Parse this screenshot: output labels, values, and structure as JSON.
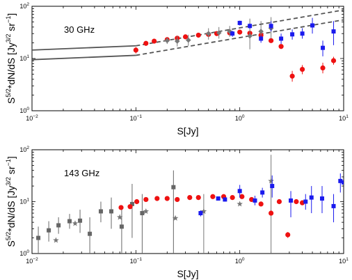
{
  "chart_data": [
    {
      "type": "scatter",
      "annotation": "30 GHz",
      "xlabel": "S[Jy]",
      "ylabel_main": "S",
      "ylabel_sup": "5/2",
      "ylabel_mid": "*dN/dS [Jy",
      "ylabel_sup2": "3/2",
      "ylabel_mid2": " sr",
      "ylabel_sup3": "−1",
      "ylabel_end": "]",
      "xscale": "log",
      "yscale": "log",
      "xlim": [
        0.01,
        10
      ],
      "ylim": [
        1,
        100
      ],
      "x_ticks": [
        {
          "v": 0.01,
          "label": "10",
          "exp": "−2"
        },
        {
          "v": 0.1,
          "label": "10",
          "exp": "−1"
        },
        {
          "v": 1,
          "label": "10",
          "exp": "0"
        },
        {
          "v": 10,
          "label": "10",
          "exp": "1"
        }
      ],
      "y_ticks": [
        {
          "v": 1,
          "label": "10",
          "exp": "0"
        },
        {
          "v": 10,
          "label": "10",
          "exp": "1"
        },
        {
          "v": 100,
          "label": "10",
          "exp": "2"
        }
      ],
      "lines": [
        {
          "style": "solid",
          "color": "#555555",
          "x": [
            0.01,
            0.1
          ],
          "y": [
            14.5,
            17.5
          ]
        },
        {
          "style": "solid",
          "color": "#555555",
          "x": [
            0.01,
            0.1
          ],
          "y": [
            9.5,
            11.5
          ]
        },
        {
          "style": "dashed",
          "color": "#555555",
          "x": [
            0.1,
            10
          ],
          "y": [
            17.5,
            85
          ]
        },
        {
          "style": "dashed",
          "color": "#555555",
          "x": [
            0.1,
            10
          ],
          "y": [
            11.5,
            55
          ]
        }
      ],
      "series": [
        {
          "marker": "circle",
          "color": "#ee1111",
          "points": [
            {
              "x": 0.1,
              "y": 14.5,
              "lo": 12.5,
              "hi": 16.5
            },
            {
              "x": 0.125,
              "y": 19.5,
              "lo": 17.5,
              "hi": 21.5
            },
            {
              "x": 0.15,
              "y": 21.5
            },
            {
              "x": 0.2,
              "y": 23
            },
            {
              "x": 0.25,
              "y": 24.5
            },
            {
              "x": 0.3,
              "y": 26
            },
            {
              "x": 0.4,
              "y": 28
            },
            {
              "x": 0.5,
              "y": 29
            },
            {
              "x": 0.6,
              "y": 30
            },
            {
              "x": 0.8,
              "y": 31
            },
            {
              "x": 1.0,
              "y": 32
            },
            {
              "x": 1.25,
              "y": 30.5
            },
            {
              "x": 1.6,
              "y": 28
            },
            {
              "x": 2.0,
              "y": 22
            },
            {
              "x": 2.5,
              "y": 17
            },
            {
              "x": 3.2,
              "y": 4.6,
              "lo": 3.6,
              "hi": 5.8
            },
            {
              "x": 4.0,
              "y": 6.2,
              "lo": 5.0,
              "hi": 7.5
            },
            {
              "x": 6.3,
              "y": 6.6,
              "lo": 5.2,
              "hi": 8.3
            },
            {
              "x": 8.0,
              "y": 9.1,
              "lo": 7.6,
              "hi": 10.8
            }
          ]
        },
        {
          "marker": "diamond",
          "color": "#777777",
          "points": [
            {
              "x": 0.2,
              "y": 22,
              "lo": 19,
              "hi": 25
            },
            {
              "x": 0.25,
              "y": 21.5,
              "lo": 17,
              "hi": 27
            },
            {
              "x": 0.32,
              "y": 22.5,
              "lo": 17.5,
              "hi": 28.5
            },
            {
              "x": 0.5,
              "y": 30,
              "lo": 23,
              "hi": 38
            },
            {
              "x": 0.63,
              "y": 31,
              "lo": 24,
              "hi": 40
            },
            {
              "x": 0.8,
              "y": 33,
              "lo": 26,
              "hi": 42
            },
            {
              "x": 1.25,
              "y": 27,
              "lo": 15,
              "hi": 58
            },
            {
              "x": 1.6,
              "y": 33,
              "lo": 22,
              "hi": 52
            },
            {
              "x": 2.0,
              "y": 38,
              "lo": 24,
              "hi": 62
            }
          ]
        },
        {
          "marker": "square",
          "color": "#1a1aee",
          "points": [
            {
              "x": 0.85,
              "y": 30,
              "lo": 26,
              "hi": 34
            },
            {
              "x": 1.0,
              "y": 48,
              "lo": 43,
              "hi": 53
            },
            {
              "x": 1.25,
              "y": 42,
              "lo": 37,
              "hi": 47
            },
            {
              "x": 1.6,
              "y": 24,
              "lo": 20,
              "hi": 28
            },
            {
              "x": 2.0,
              "y": 42,
              "lo": 33,
              "hi": 52
            },
            {
              "x": 2.5,
              "y": 24,
              "lo": 19,
              "hi": 30
            },
            {
              "x": 3.2,
              "y": 29,
              "lo": 23,
              "hi": 36
            },
            {
              "x": 4.0,
              "y": 30,
              "lo": 24,
              "hi": 38
            },
            {
              "x": 5.0,
              "y": 43,
              "lo": 30,
              "hi": 60
            },
            {
              "x": 6.3,
              "y": 16,
              "lo": 11,
              "hi": 22
            },
            {
              "x": 8.0,
              "y": 33,
              "lo": 18,
              "hi": 52
            }
          ]
        }
      ]
    },
    {
      "type": "scatter",
      "annotation": "143 GHz",
      "xlabel": "S[Jy]",
      "ylabel_main": "S",
      "ylabel_sup": "5/2",
      "ylabel_mid": "*dN/dS [Jy",
      "ylabel_sup2": "3/2",
      "ylabel_mid2": " sr",
      "ylabel_sup3": "−1",
      "ylabel_end": "]",
      "xscale": "log",
      "yscale": "log",
      "xlim": [
        0.01,
        10
      ],
      "ylim": [
        1,
        100
      ],
      "x_ticks": [
        {
          "v": 0.01,
          "label": "10",
          "exp": "−2"
        },
        {
          "v": 0.1,
          "label": "10",
          "exp": "−1"
        },
        {
          "v": 1,
          "label": "10",
          "exp": "0"
        },
        {
          "v": 10,
          "label": "10",
          "exp": "1"
        }
      ],
      "y_ticks": [
        {
          "v": 1,
          "label": "10",
          "exp": "0"
        },
        {
          "v": 10,
          "label": "10",
          "exp": "1"
        },
        {
          "v": 100,
          "label": "10",
          "exp": "2"
        }
      ],
      "lines": [],
      "series": [
        {
          "marker": "square",
          "color": "#666666",
          "points": [
            {
              "x": 0.0115,
              "y": 2.0,
              "lo": 1.0,
              "hi": 3.3
            },
            {
              "x": 0.0145,
              "y": 2.8,
              "lo": 1.7,
              "hi": 4.2
            },
            {
              "x": 0.018,
              "y": 3.5,
              "lo": 2.4,
              "hi": 5.0
            },
            {
              "x": 0.023,
              "y": 4.2,
              "lo": 3.0,
              "hi": 5.8
            },
            {
              "x": 0.029,
              "y": 4.3,
              "lo": 2.5,
              "hi": 7.0
            },
            {
              "x": 0.036,
              "y": 2.4,
              "lo": 1.0,
              "hi": 5.0
            },
            {
              "x": 0.046,
              "y": 6.5,
              "lo": 4.0,
              "hi": 10.0
            },
            {
              "x": 0.058,
              "y": 6.5,
              "lo": 3.0,
              "hi": 12.0
            },
            {
              "x": 0.073,
              "y": 3.3,
              "lo": 1.0,
              "hi": 8.0
            },
            {
              "x": 0.092,
              "y": 9.0,
              "lo": 2.0,
              "hi": 22.0
            },
            {
              "x": 0.115,
              "y": 6.0,
              "lo": 1.0,
              "hi": 14.0
            },
            {
              "x": 0.23,
              "y": 19.0,
              "lo": 1.0,
              "hi": 40.0
            }
          ]
        },
        {
          "marker": "star",
          "color": "#777777",
          "points": [
            {
              "x": 0.017,
              "y": 1.8
            },
            {
              "x": 0.026,
              "y": 3.8
            },
            {
              "x": 0.07,
              "y": 5.0
            },
            {
              "x": 0.125,
              "y": 6.5
            },
            {
              "x": 0.24,
              "y": 4.8
            },
            {
              "x": 0.45,
              "y": 6.5,
              "lo": 1.0,
              "hi": 14.0
            },
            {
              "x": 1.0,
              "y": 9.0
            },
            {
              "x": 2.0,
              "y": 25.0,
              "lo": 1.0,
              "hi": 80.0
            }
          ]
        },
        {
          "marker": "circle",
          "color": "#ee1111",
          "points": [
            {
              "x": 0.072,
              "y": 7.7
            },
            {
              "x": 0.088,
              "y": 8.0
            },
            {
              "x": 0.102,
              "y": 10.0
            },
            {
              "x": 0.125,
              "y": 11.0
            },
            {
              "x": 0.16,
              "y": 11.5
            },
            {
              "x": 0.2,
              "y": 11.5
            },
            {
              "x": 0.25,
              "y": 11.0
            },
            {
              "x": 0.33,
              "y": 12.0
            },
            {
              "x": 0.4,
              "y": 12.0
            },
            {
              "x": 0.55,
              "y": 12.5
            },
            {
              "x": 0.7,
              "y": 12.5
            },
            {
              "x": 0.85,
              "y": 12.0
            },
            {
              "x": 1.05,
              "y": 12.5
            },
            {
              "x": 1.3,
              "y": 11.0
            },
            {
              "x": 1.6,
              "y": 9.0
            },
            {
              "x": 2.0,
              "y": 6.0
            },
            {
              "x": 2.4,
              "y": 10.0
            },
            {
              "x": 2.9,
              "y": 2.3,
              "lo": 2.0,
              "hi": 2.6
            },
            {
              "x": 3.5,
              "y": 10.0
            },
            {
              "x": 4.0,
              "y": 9.5
            }
          ]
        },
        {
          "marker": "square",
          "color": "#1a1aee",
          "points": [
            {
              "x": 0.42,
              "y": 6.0,
              "lo": 5.2,
              "hi": 6.8
            },
            {
              "x": 0.62,
              "y": 11.5,
              "lo": 10.5,
              "hi": 12.5
            },
            {
              "x": 0.72,
              "y": 11.0,
              "lo": 10.0,
              "hi": 12.0
            },
            {
              "x": 1.0,
              "y": 16.0,
              "lo": 12.0,
              "hi": 21.0
            },
            {
              "x": 1.4,
              "y": 10.5,
              "lo": 8.5,
              "hi": 13.0
            },
            {
              "x": 1.65,
              "y": 15.0,
              "lo": 12.0,
              "hi": 18.5
            },
            {
              "x": 2.05,
              "y": 20.0,
              "lo": 12.0,
              "hi": 32.0
            },
            {
              "x": 3.1,
              "y": 10.5,
              "lo": 5.0,
              "hi": 16.0
            },
            {
              "x": 4.3,
              "y": 10.0,
              "lo": 7.0,
              "hi": 14.0
            },
            {
              "x": 4.9,
              "y": 12.0,
              "lo": 6.0,
              "hi": 20.0
            },
            {
              "x": 6.2,
              "y": 11.5,
              "lo": 6.0,
              "hi": 20.0
            },
            {
              "x": 8.0,
              "y": 8.2,
              "lo": 4.0,
              "hi": 14.0
            },
            {
              "x": 9.3,
              "y": 25.0,
              "lo": 15.0,
              "hi": 35.0
            },
            {
              "x": 10.0,
              "y": 23.5
            }
          ]
        }
      ]
    }
  ]
}
